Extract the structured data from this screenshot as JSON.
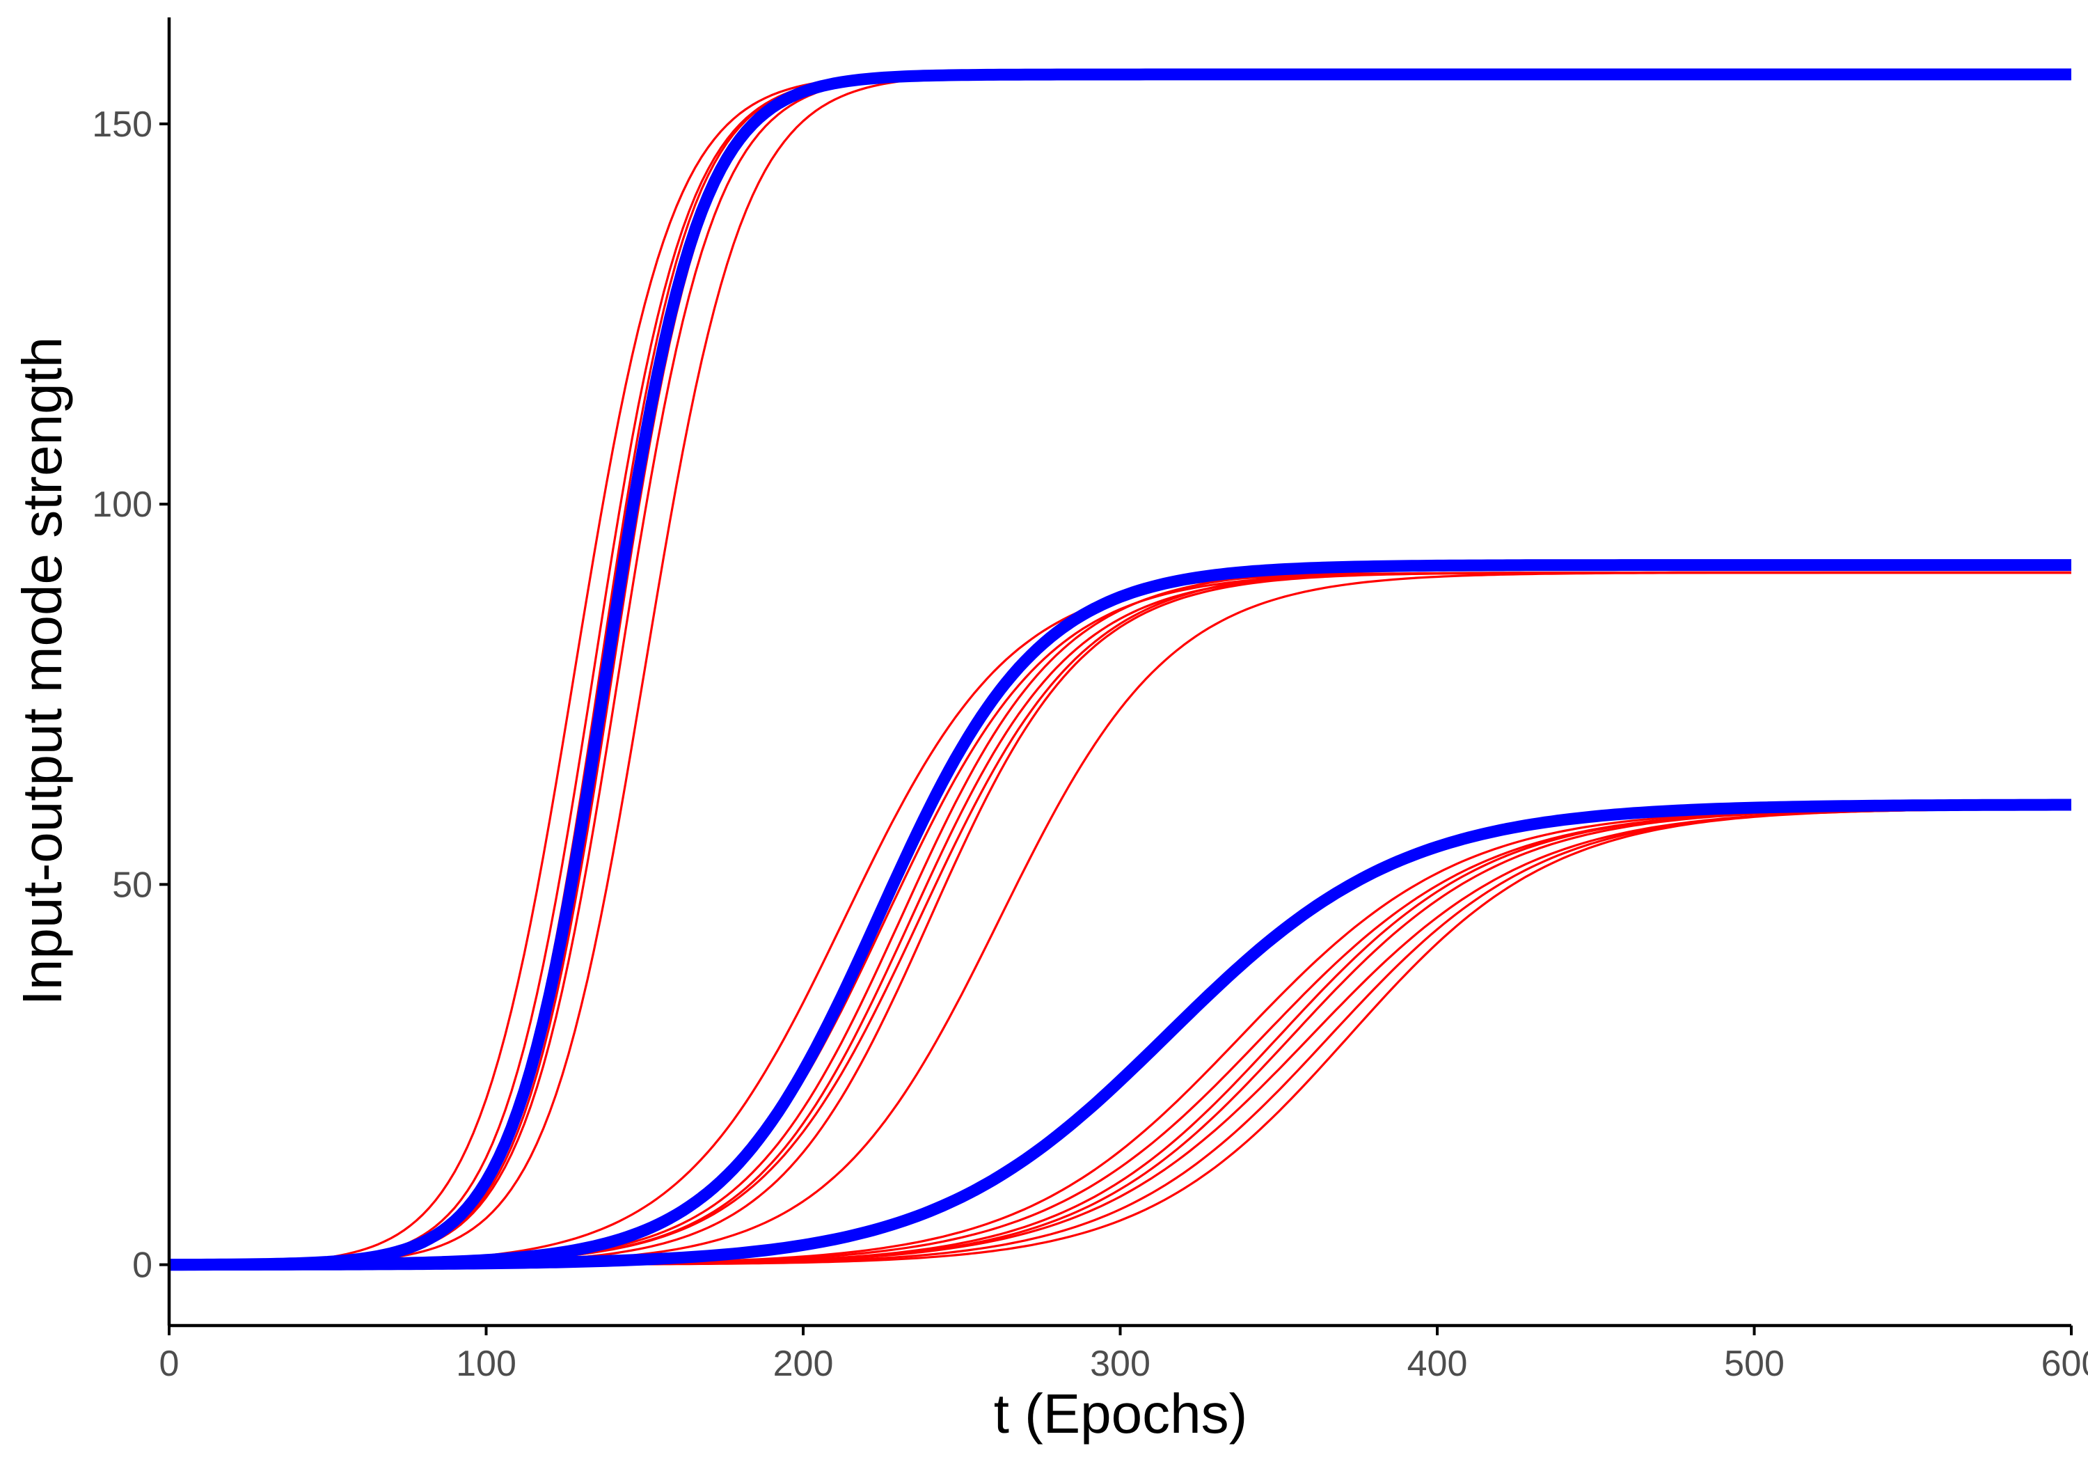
{
  "chart_data": {
    "type": "line",
    "title": "",
    "xlabel": "t (Epochs)",
    "ylabel": "Input-output mode strength",
    "xlim": [
      0,
      600
    ],
    "ylim": [
      -8,
      164
    ],
    "x_ticks": [
      "0",
      "100",
      "200",
      "300",
      "400",
      "500",
      "600"
    ],
    "y_ticks": [
      "0",
      "50",
      "100",
      "150"
    ],
    "grid": false,
    "legend": "none",
    "colors": {
      "simulation": "#ff0000",
      "theory": "#0000ff"
    },
    "series": [
      {
        "group": "mode-1",
        "kind": "theory",
        "color": "#0000ff",
        "asymptote": 156.5,
        "midpoint_t": 138,
        "rate": 0.068
      },
      {
        "group": "mode-2",
        "kind": "theory",
        "color": "#0000ff",
        "asymptote": 92,
        "midpoint_t": 224,
        "rate": 0.04
      },
      {
        "group": "mode-3",
        "kind": "theory",
        "color": "#0000ff",
        "asymptote": 60.5,
        "midpoint_t": 315,
        "rate": 0.027
      },
      {
        "group": "mode-1",
        "kind": "simulation",
        "color": "#ff0000",
        "asymptote": 156.5,
        "midpoint_t": 128,
        "rate": 0.065
      },
      {
        "group": "mode-1",
        "kind": "simulation",
        "color": "#ff0000",
        "asymptote": 156.5,
        "midpoint_t": 134,
        "rate": 0.068
      },
      {
        "group": "mode-1",
        "kind": "simulation",
        "color": "#ff0000",
        "asymptote": 156.5,
        "midpoint_t": 136,
        "rate": 0.07
      },
      {
        "group": "mode-1",
        "kind": "simulation",
        "color": "#ff0000",
        "asymptote": 156.5,
        "midpoint_t": 138,
        "rate": 0.07
      },
      {
        "group": "mode-1",
        "kind": "simulation",
        "color": "#ff0000",
        "asymptote": 156.5,
        "midpoint_t": 140,
        "rate": 0.069
      },
      {
        "group": "mode-1",
        "kind": "simulation",
        "color": "#ff0000",
        "asymptote": 156.5,
        "midpoint_t": 142,
        "rate": 0.067
      },
      {
        "group": "mode-1",
        "kind": "simulation",
        "color": "#ff0000",
        "asymptote": 156.5,
        "midpoint_t": 150,
        "rate": 0.064
      },
      {
        "group": "mode-2",
        "kind": "simulation",
        "color": "#ff0000",
        "asymptote": 91,
        "midpoint_t": 213,
        "rate": 0.038
      },
      {
        "group": "mode-2",
        "kind": "simulation",
        "color": "#ff0000",
        "asymptote": 91,
        "midpoint_t": 226,
        "rate": 0.039
      },
      {
        "group": "mode-2",
        "kind": "simulation",
        "color": "#ff0000",
        "asymptote": 91.5,
        "midpoint_t": 231,
        "rate": 0.04
      },
      {
        "group": "mode-2",
        "kind": "simulation",
        "color": "#ff0000",
        "asymptote": 91,
        "midpoint_t": 234,
        "rate": 0.04
      },
      {
        "group": "mode-2",
        "kind": "simulation",
        "color": "#ff0000",
        "asymptote": 91.5,
        "midpoint_t": 237,
        "rate": 0.039
      },
      {
        "group": "mode-2",
        "kind": "simulation",
        "color": "#ff0000",
        "asymptote": 91,
        "midpoint_t": 240,
        "rate": 0.041
      },
      {
        "group": "mode-2",
        "kind": "simulation",
        "color": "#ff0000",
        "asymptote": 91,
        "midpoint_t": 262,
        "rate": 0.037
      },
      {
        "group": "mode-3",
        "kind": "simulation",
        "color": "#ff0000",
        "asymptote": 60,
        "midpoint_t": 338,
        "rate": 0.029
      },
      {
        "group": "mode-3",
        "kind": "simulation",
        "color": "#ff0000",
        "asymptote": 60,
        "midpoint_t": 345,
        "rate": 0.029
      },
      {
        "group": "mode-3",
        "kind": "simulation",
        "color": "#ff0000",
        "asymptote": 60,
        "midpoint_t": 350,
        "rate": 0.03
      },
      {
        "group": "mode-3",
        "kind": "simulation",
        "color": "#ff0000",
        "asymptote": 60,
        "midpoint_t": 354,
        "rate": 0.03
      },
      {
        "group": "mode-3",
        "kind": "simulation",
        "color": "#ff0000",
        "asymptote": 60,
        "midpoint_t": 360,
        "rate": 0.029
      },
      {
        "group": "mode-3",
        "kind": "simulation",
        "color": "#ff0000",
        "asymptote": 60,
        "midpoint_t": 366,
        "rate": 0.03
      },
      {
        "group": "mode-3",
        "kind": "simulation",
        "color": "#ff0000",
        "asymptote": 60,
        "midpoint_t": 372,
        "rate": 0.031
      }
    ]
  }
}
